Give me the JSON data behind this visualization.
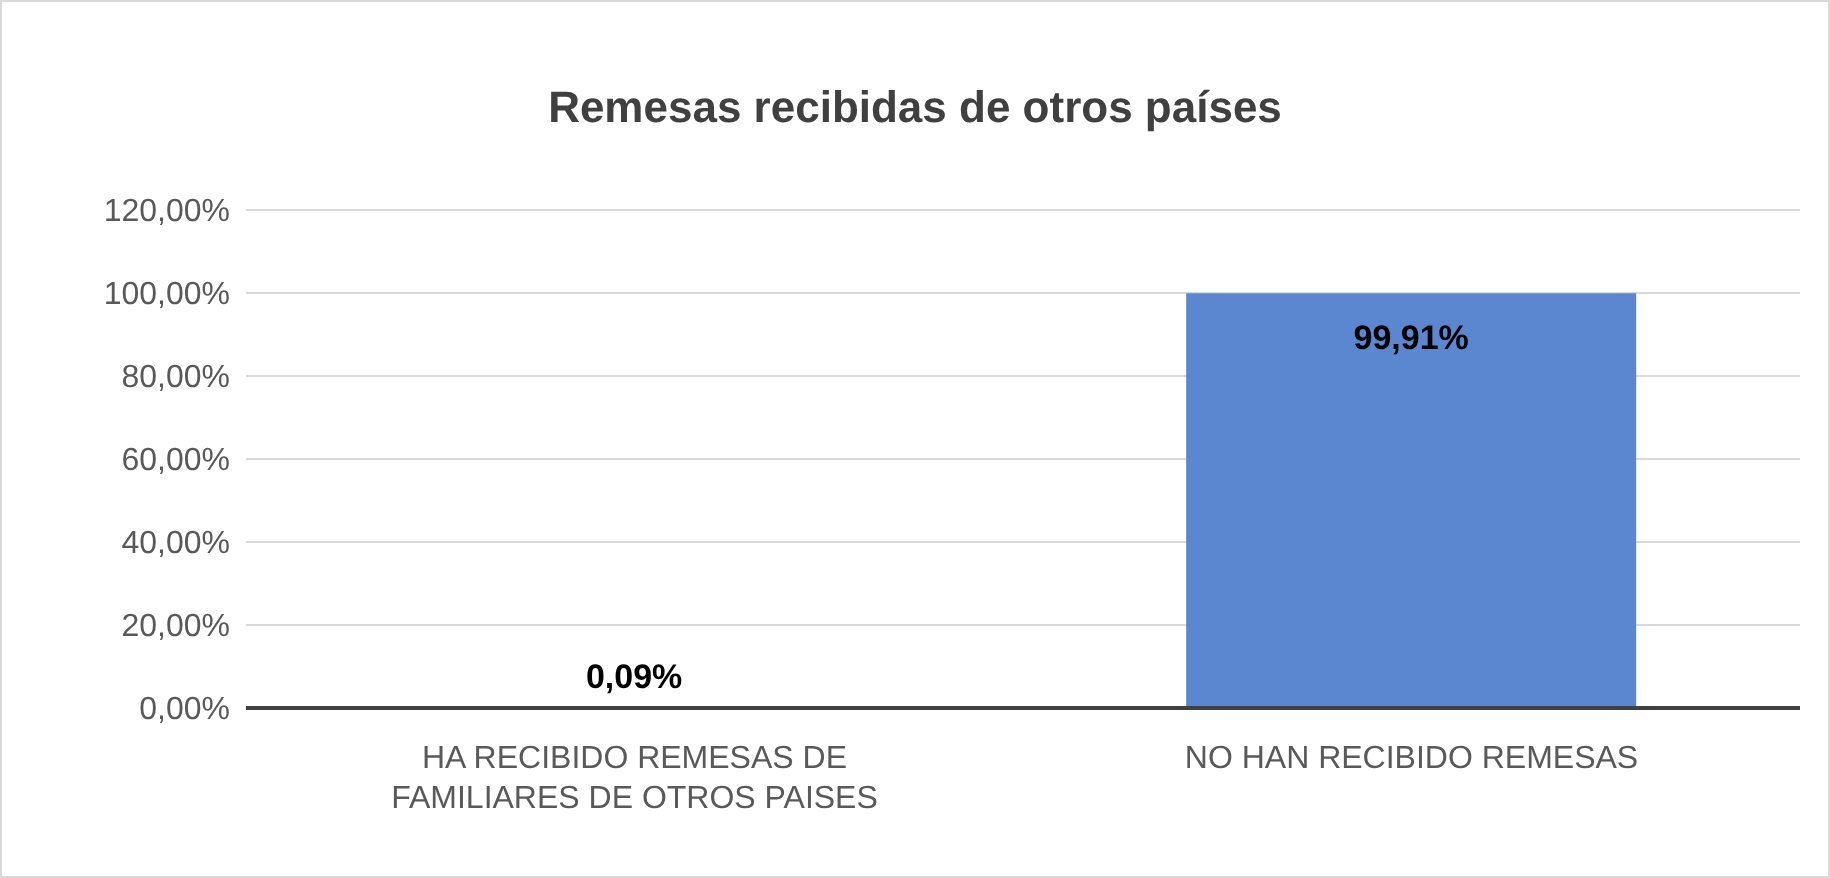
{
  "chart_data": {
    "type": "bar",
    "title": "Remesas recibidas de otros países",
    "categories": [
      "HA RECIBIDO REMESAS DE FAMILIARES DE OTROS PAISES",
      "NO HAN RECIBIDO REMESAS"
    ],
    "values": [
      0.09,
      99.91
    ],
    "color": "#5b87d0",
    "value_labels": [
      "0,09%",
      "99,91%"
    ],
    "ylim": [
      0,
      120
    ],
    "yticks": [
      {
        "value": 0,
        "label": "0,00%"
      },
      {
        "value": 20,
        "label": "20,00%"
      },
      {
        "value": 40,
        "label": "40,00%"
      },
      {
        "value": 60,
        "label": "60,00%"
      },
      {
        "value": 80,
        "label": "80,00%"
      },
      {
        "value": 100,
        "label": "100,00%"
      },
      {
        "value": 120,
        "label": "120,00%"
      }
    ],
    "grid": "y",
    "legend": false
  }
}
